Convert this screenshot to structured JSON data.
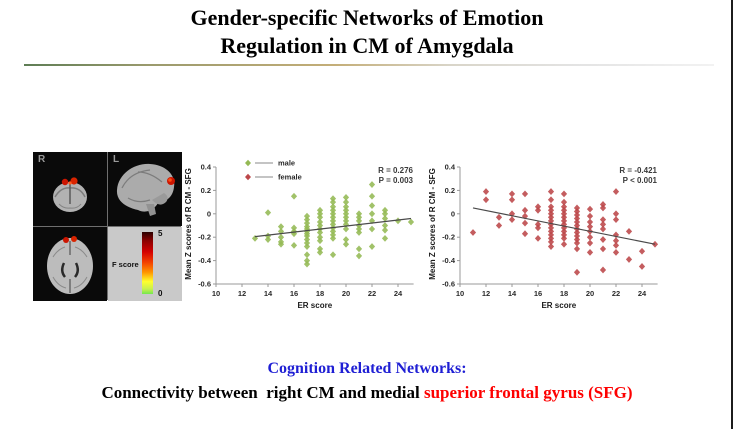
{
  "slide": {
    "title_line1": "Gender-specific Networks of Emotion",
    "title_line2": "Regulation in CM of Amygdala"
  },
  "brain_panel": {
    "label_top_left": "R",
    "label_top_right": "L",
    "colorbar": {
      "label": "F score",
      "max": "5",
      "min": "0"
    }
  },
  "footer": {
    "line1": "Cognition Related Networks:",
    "line2_black": "Connectivity between  right CM and medial ",
    "line2_red": "superior frontal gyrus (SFG)",
    "blue_color": "#1f1fd4",
    "red_color": "#fe0000"
  },
  "chart_data": [
    {
      "type": "scatter",
      "xlabel": "ER score",
      "ylabel": "Mean Z scores of R CM - SFG",
      "xlim": [
        10,
        25.2
      ],
      "ylim": [
        -0.6,
        0.4
      ],
      "xticks": [
        10,
        12,
        14,
        16,
        18,
        20,
        22,
        24
      ],
      "yticks": [
        0.4,
        0.2,
        0,
        -0.2,
        -0.4,
        -0.6
      ],
      "grid": false,
      "legend": {
        "visible": true,
        "position": "top-left",
        "entries": [
          {
            "label": "male",
            "color": "#94b954"
          },
          {
            "label": "female",
            "color": "#bc4749"
          }
        ]
      },
      "annotation": [
        "R = 0.276",
        "P = 0.003"
      ],
      "fit_line": {
        "x1": 13,
        "y1": -0.195,
        "x2": 25,
        "y2": -0.04,
        "color": "#4a4a4a"
      },
      "series": [
        {
          "name": "male",
          "color": "#94b954",
          "marker": "diamond",
          "points": [
            [
              13,
              -0.21
            ],
            [
              14,
              0.01
            ],
            [
              14,
              -0.19
            ],
            [
              14,
              -0.22
            ],
            [
              15,
              -0.11
            ],
            [
              15,
              -0.15
            ],
            [
              15,
              -0.2
            ],
            [
              15,
              -0.24
            ],
            [
              15,
              -0.26
            ],
            [
              16,
              0.15
            ],
            [
              16,
              -0.12
            ],
            [
              16,
              -0.15
            ],
            [
              16,
              -0.17
            ],
            [
              16,
              -0.27
            ],
            [
              17,
              -0.02
            ],
            [
              17,
              -0.05
            ],
            [
              17,
              -0.08
            ],
            [
              17,
              -0.11
            ],
            [
              17,
              -0.13
            ],
            [
              17,
              -0.15
            ],
            [
              17,
              -0.17
            ],
            [
              17,
              -0.19
            ],
            [
              17,
              -0.22
            ],
            [
              17,
              -0.25
            ],
            [
              17,
              -0.28
            ],
            [
              17,
              -0.35
            ],
            [
              17,
              -0.4
            ],
            [
              17,
              -0.43
            ],
            [
              18,
              0.03
            ],
            [
              18,
              0
            ],
            [
              18,
              -0.03
            ],
            [
              18,
              -0.07
            ],
            [
              18,
              -0.1
            ],
            [
              18,
              -0.13
            ],
            [
              18,
              -0.16
            ],
            [
              18,
              -0.2
            ],
            [
              18,
              -0.23
            ],
            [
              18,
              -0.3
            ],
            [
              18,
              -0.33
            ],
            [
              19,
              0.13
            ],
            [
              19,
              0.1
            ],
            [
              19,
              0.06
            ],
            [
              19,
              0.03
            ],
            [
              19,
              0
            ],
            [
              19,
              -0.03
            ],
            [
              19,
              -0.06
            ],
            [
              19,
              -0.09
            ],
            [
              19,
              -0.12
            ],
            [
              19,
              -0.15
            ],
            [
              19,
              -0.18
            ],
            [
              19,
              -0.21
            ],
            [
              19,
              -0.35
            ],
            [
              20,
              0.14
            ],
            [
              20,
              0.1
            ],
            [
              20,
              0.06
            ],
            [
              20,
              0.03
            ],
            [
              20,
              0
            ],
            [
              20,
              -0.03
            ],
            [
              20,
              -0.06
            ],
            [
              20,
              -0.09
            ],
            [
              20,
              -0.13
            ],
            [
              20,
              -0.22
            ],
            [
              20,
              -0.26
            ],
            [
              21,
              0
            ],
            [
              21,
              -0.03
            ],
            [
              21,
              -0.06
            ],
            [
              21,
              -0.1
            ],
            [
              21,
              -0.13
            ],
            [
              21,
              -0.16
            ],
            [
              21,
              -0.3
            ],
            [
              21,
              -0.36
            ],
            [
              22,
              0.25
            ],
            [
              22,
              0.15
            ],
            [
              22,
              0.07
            ],
            [
              22,
              0
            ],
            [
              22,
              -0.06
            ],
            [
              22,
              -0.13
            ],
            [
              22,
              -0.28
            ],
            [
              23,
              0.03
            ],
            [
              23,
              0
            ],
            [
              23,
              -0.04
            ],
            [
              23,
              -0.1
            ],
            [
              23,
              -0.14
            ],
            [
              23,
              -0.21
            ],
            [
              24,
              -0.06
            ],
            [
              25,
              -0.07
            ]
          ]
        }
      ]
    },
    {
      "type": "scatter",
      "xlabel": "ER score",
      "ylabel": "Mean Z scores of R CM - SFG",
      "xlim": [
        10,
        25.2
      ],
      "ylim": [
        -0.6,
        0.4
      ],
      "xticks": [
        10,
        12,
        14,
        16,
        18,
        20,
        22,
        24
      ],
      "yticks": [
        0.4,
        0.2,
        0,
        -0.2,
        -0.4,
        -0.6
      ],
      "grid": false,
      "legend": {
        "visible": false,
        "entries": []
      },
      "annotation": [
        "R = -0.421",
        "P < 0.001"
      ],
      "fit_line": {
        "x1": 11,
        "y1": 0.05,
        "x2": 25,
        "y2": -0.26,
        "color": "#4a4a4a"
      },
      "series": [
        {
          "name": "female",
          "color": "#bc4749",
          "marker": "diamond",
          "points": [
            [
              11,
              -0.16
            ],
            [
              12,
              0.19
            ],
            [
              12,
              0.12
            ],
            [
              13,
              -0.03
            ],
            [
              13,
              -0.1
            ],
            [
              14,
              0.17
            ],
            [
              14,
              0.12
            ],
            [
              14,
              0
            ],
            [
              14,
              -0.05
            ],
            [
              15,
              0.17
            ],
            [
              15,
              0.03
            ],
            [
              15,
              -0.02
            ],
            [
              15,
              -0.08
            ],
            [
              15,
              -0.17
            ],
            [
              16,
              0.06
            ],
            [
              16,
              0.03
            ],
            [
              16,
              -0.09
            ],
            [
              16,
              -0.12
            ],
            [
              16,
              -0.21
            ],
            [
              17,
              0.19
            ],
            [
              17,
              0.12
            ],
            [
              17,
              0.06
            ],
            [
              17,
              0.03
            ],
            [
              17,
              0
            ],
            [
              17,
              -0.03
            ],
            [
              17,
              -0.06
            ],
            [
              17,
              -0.09
            ],
            [
              17,
              -0.12
            ],
            [
              17,
              -0.15
            ],
            [
              17,
              -0.18
            ],
            [
              17,
              -0.21
            ],
            [
              17,
              -0.24
            ],
            [
              17,
              -0.28
            ],
            [
              18,
              0.17
            ],
            [
              18,
              0.1
            ],
            [
              18,
              0.06
            ],
            [
              18,
              0.03
            ],
            [
              18,
              0
            ],
            [
              18,
              -0.03
            ],
            [
              18,
              -0.06
            ],
            [
              18,
              -0.09
            ],
            [
              18,
              -0.12
            ],
            [
              18,
              -0.15
            ],
            [
              18,
              -0.18
            ],
            [
              18,
              -0.21
            ],
            [
              18,
              -0.26
            ],
            [
              19,
              0.05
            ],
            [
              19,
              0.02
            ],
            [
              19,
              -0.01
            ],
            [
              19,
              -0.04
            ],
            [
              19,
              -0.07
            ],
            [
              19,
              -0.1
            ],
            [
              19,
              -0.13
            ],
            [
              19,
              -0.16
            ],
            [
              19,
              -0.19
            ],
            [
              19,
              -0.22
            ],
            [
              19,
              -0.25
            ],
            [
              19,
              -0.3
            ],
            [
              19,
              -0.5
            ],
            [
              20,
              0.04
            ],
            [
              20,
              -0.02
            ],
            [
              20,
              -0.07
            ],
            [
              20,
              -0.11
            ],
            [
              20,
              -0.15
            ],
            [
              20,
              -0.2
            ],
            [
              20,
              -0.25
            ],
            [
              20,
              -0.33
            ],
            [
              21,
              0.08
            ],
            [
              21,
              0.05
            ],
            [
              21,
              -0.05
            ],
            [
              21,
              -0.09
            ],
            [
              21,
              -0.13
            ],
            [
              21,
              -0.22
            ],
            [
              21,
              -0.3
            ],
            [
              21,
              -0.48
            ],
            [
              22,
              0.19
            ],
            [
              22,
              0
            ],
            [
              22,
              -0.05
            ],
            [
              22,
              -0.18
            ],
            [
              22,
              -0.23
            ],
            [
              22,
              -0.27
            ],
            [
              22,
              -0.33
            ],
            [
              23,
              -0.15
            ],
            [
              23,
              -0.39
            ],
            [
              24,
              -0.32
            ],
            [
              24,
              -0.45
            ],
            [
              25,
              -0.26
            ]
          ]
        }
      ]
    }
  ]
}
